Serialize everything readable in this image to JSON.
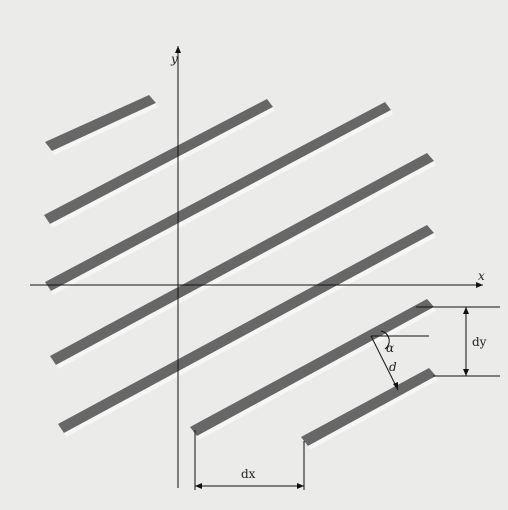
{
  "diagram": {
    "axes": {
      "x_label": "x",
      "y_label": "y"
    },
    "annotations": {
      "alpha": "α",
      "d": "d",
      "dx": "dx",
      "dy": "dy"
    },
    "colors": {
      "stripe": "#676767",
      "line": "#111111",
      "background": "#e9e9e7",
      "gap": "#f7f7f5"
    }
  }
}
